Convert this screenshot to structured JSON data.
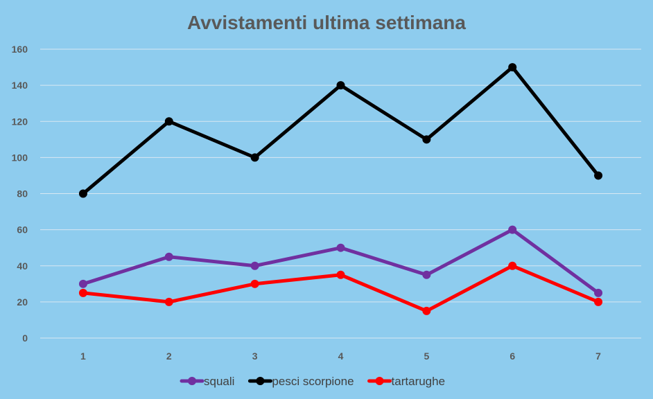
{
  "chart_data": {
    "type": "line",
    "title": "Avvistamenti ultima settimana",
    "xlabel": "",
    "ylabel": "",
    "categories": [
      "1",
      "2",
      "3",
      "4",
      "5",
      "6",
      "7"
    ],
    "ylim": [
      0,
      160
    ],
    "yticks": [
      0,
      20,
      40,
      60,
      80,
      100,
      120,
      140,
      160
    ],
    "grid": true,
    "legend_position": "bottom",
    "series": [
      {
        "name": "squali",
        "color": "#7030A0",
        "values": [
          30,
          45,
          40,
          50,
          35,
          60,
          25
        ]
      },
      {
        "name": "pesci scorpione",
        "color": "#000000",
        "values": [
          80,
          120,
          100,
          140,
          110,
          150,
          90
        ]
      },
      {
        "name": "tartarughe",
        "color": "#FF0000",
        "values": [
          25,
          20,
          30,
          35,
          15,
          40,
          20
        ]
      }
    ]
  }
}
